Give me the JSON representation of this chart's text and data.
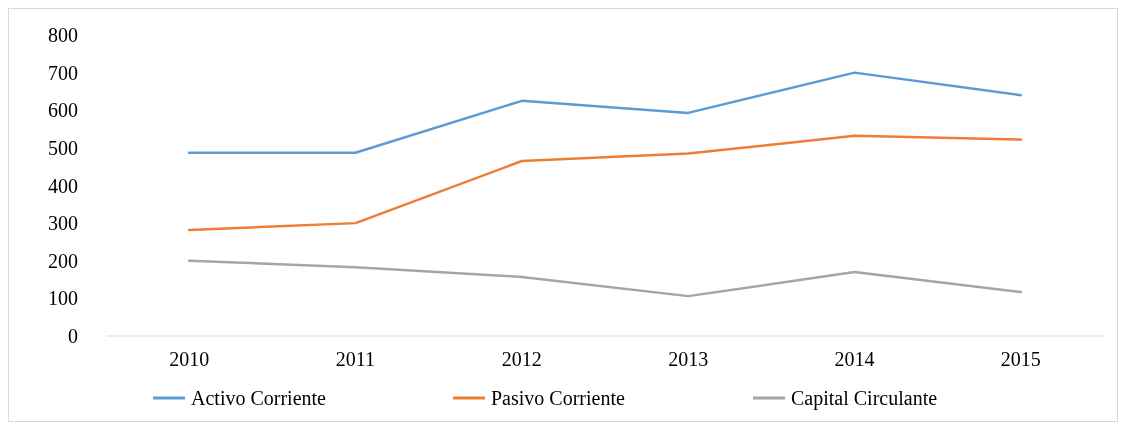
{
  "chart_data": {
    "type": "line",
    "categories": [
      "2010",
      "2011",
      "2012",
      "2013",
      "2014",
      "2015"
    ],
    "series": [
      {
        "name": "Activo Corriente",
        "color": "#5b9bd5",
        "values": [
          487,
          487,
          625,
          593,
          700,
          640
        ]
      },
      {
        "name": "Pasivo Corriente",
        "color": "#ed7d31",
        "values": [
          282,
          300,
          465,
          485,
          532,
          522
        ]
      },
      {
        "name": "Capital Circulante",
        "color": "#a5a5a5",
        "values": [
          200,
          183,
          157,
          106,
          170,
          117
        ]
      }
    ],
    "ylim": [
      0,
      800
    ],
    "yticks": [
      0,
      100,
      200,
      300,
      400,
      500,
      600,
      700,
      800
    ],
    "grid": false,
    "legend": "bottom",
    "marker": "none",
    "line_style": "solid"
  }
}
